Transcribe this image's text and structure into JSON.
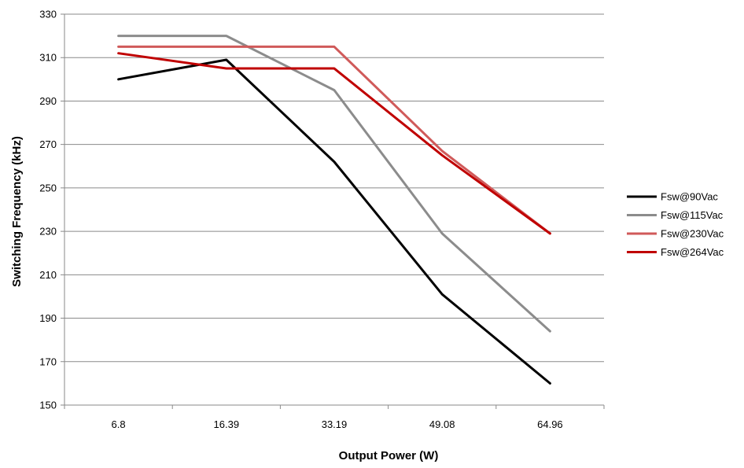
{
  "chart_data": {
    "type": "line",
    "title": "",
    "xlabel": "Output Power (W)",
    "ylabel": "Switching Frequency (kHz)",
    "categories": [
      "6.8",
      "16.39",
      "33.19",
      "49.08",
      "64.96"
    ],
    "ylim": [
      150,
      330
    ],
    "yticks": [
      150,
      170,
      190,
      210,
      230,
      250,
      270,
      290,
      310,
      330
    ],
    "grid": "horizontal",
    "legend_position": "right",
    "series": [
      {
        "name": "Fsw@90Vac",
        "color": "#000000",
        "values": [
          300,
          309,
          262,
          201,
          160
        ]
      },
      {
        "name": "Fsw@115Vac",
        "color": "#8c8c8c",
        "values": [
          320,
          320,
          295,
          229,
          184
        ]
      },
      {
        "name": "Fsw@230Vac",
        "color": "#d05a5a",
        "values": [
          315,
          315,
          315,
          267,
          229
        ]
      },
      {
        "name": "Fsw@264Vac",
        "color": "#c00000",
        "values": [
          312,
          305,
          305,
          265,
          229
        ]
      }
    ]
  }
}
